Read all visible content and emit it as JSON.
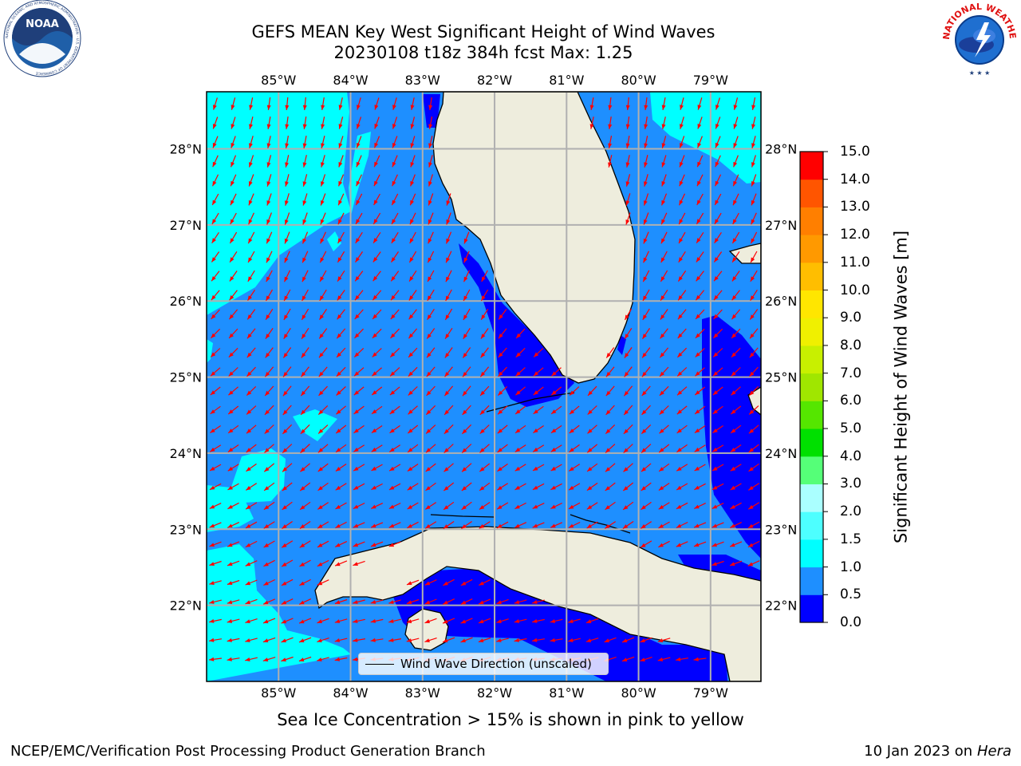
{
  "title": {
    "line1": "GEFS MEAN Key West Significant Height of Wind Waves",
    "line2": "20230108 t18z 384h fcst   Max: 1.25"
  },
  "map": {
    "lon_ticks": [
      "85°W",
      "84°W",
      "83°W",
      "82°W",
      "81°W",
      "80°W",
      "79°W"
    ],
    "lat_ticks": [
      "28°N",
      "27°N",
      "26°N",
      "25°N",
      "24°N",
      "23°N",
      "22°N"
    ],
    "lon_range": [
      -86.0,
      -78.3
    ],
    "lat_range": [
      21.0,
      28.75
    ],
    "legend_label": "Wind Wave Direction (unscaled)",
    "colors": {
      "land": "#eeeddd",
      "band_0_0.5": "#0000ff",
      "band_0.5_1.0": "#1e8fff",
      "band_1.0_1.5": "#00ffff",
      "arrow": "#ff0000",
      "grid": "#b0b0b0"
    }
  },
  "colorbar": {
    "label": "Significant Height of Wind Waves [m]",
    "ticks": [
      "0.0",
      "0.5",
      "1.0",
      "1.5",
      "2.0",
      "3.0",
      "4.0",
      "5.0",
      "6.0",
      "7.0",
      "8.0",
      "9.0",
      "10.0",
      "11.0",
      "12.0",
      "13.0",
      "14.0",
      "15.0"
    ],
    "colors": [
      "#0000ff",
      "#1e8fff",
      "#00ffff",
      "#4dffff",
      "#aaffff",
      "#55ff78",
      "#00e000",
      "#55e600",
      "#a0e600",
      "#c8f000",
      "#f0f000",
      "#ffe600",
      "#ffbe00",
      "#ff9900",
      "#ff7f00",
      "#ff5500",
      "#ff0000"
    ]
  },
  "logos": {
    "noaa_text": "NOAA",
    "noaa_ring": "NATIONAL OCEANIC AND ATMOSPHERIC ADMINISTRATION · U.S. DEPARTMENT OF COMMERCE",
    "nws_ring": "NATIONAL WEATHER SERVICE"
  },
  "subnote": "Sea Ice Concentration > 15% is shown in pink to yellow",
  "footer": {
    "left": "NCEP/EMC/Verification Post Processing Product Generation Branch",
    "right_date": "10 Jan 2023 on ",
    "right_host": "Hera"
  }
}
